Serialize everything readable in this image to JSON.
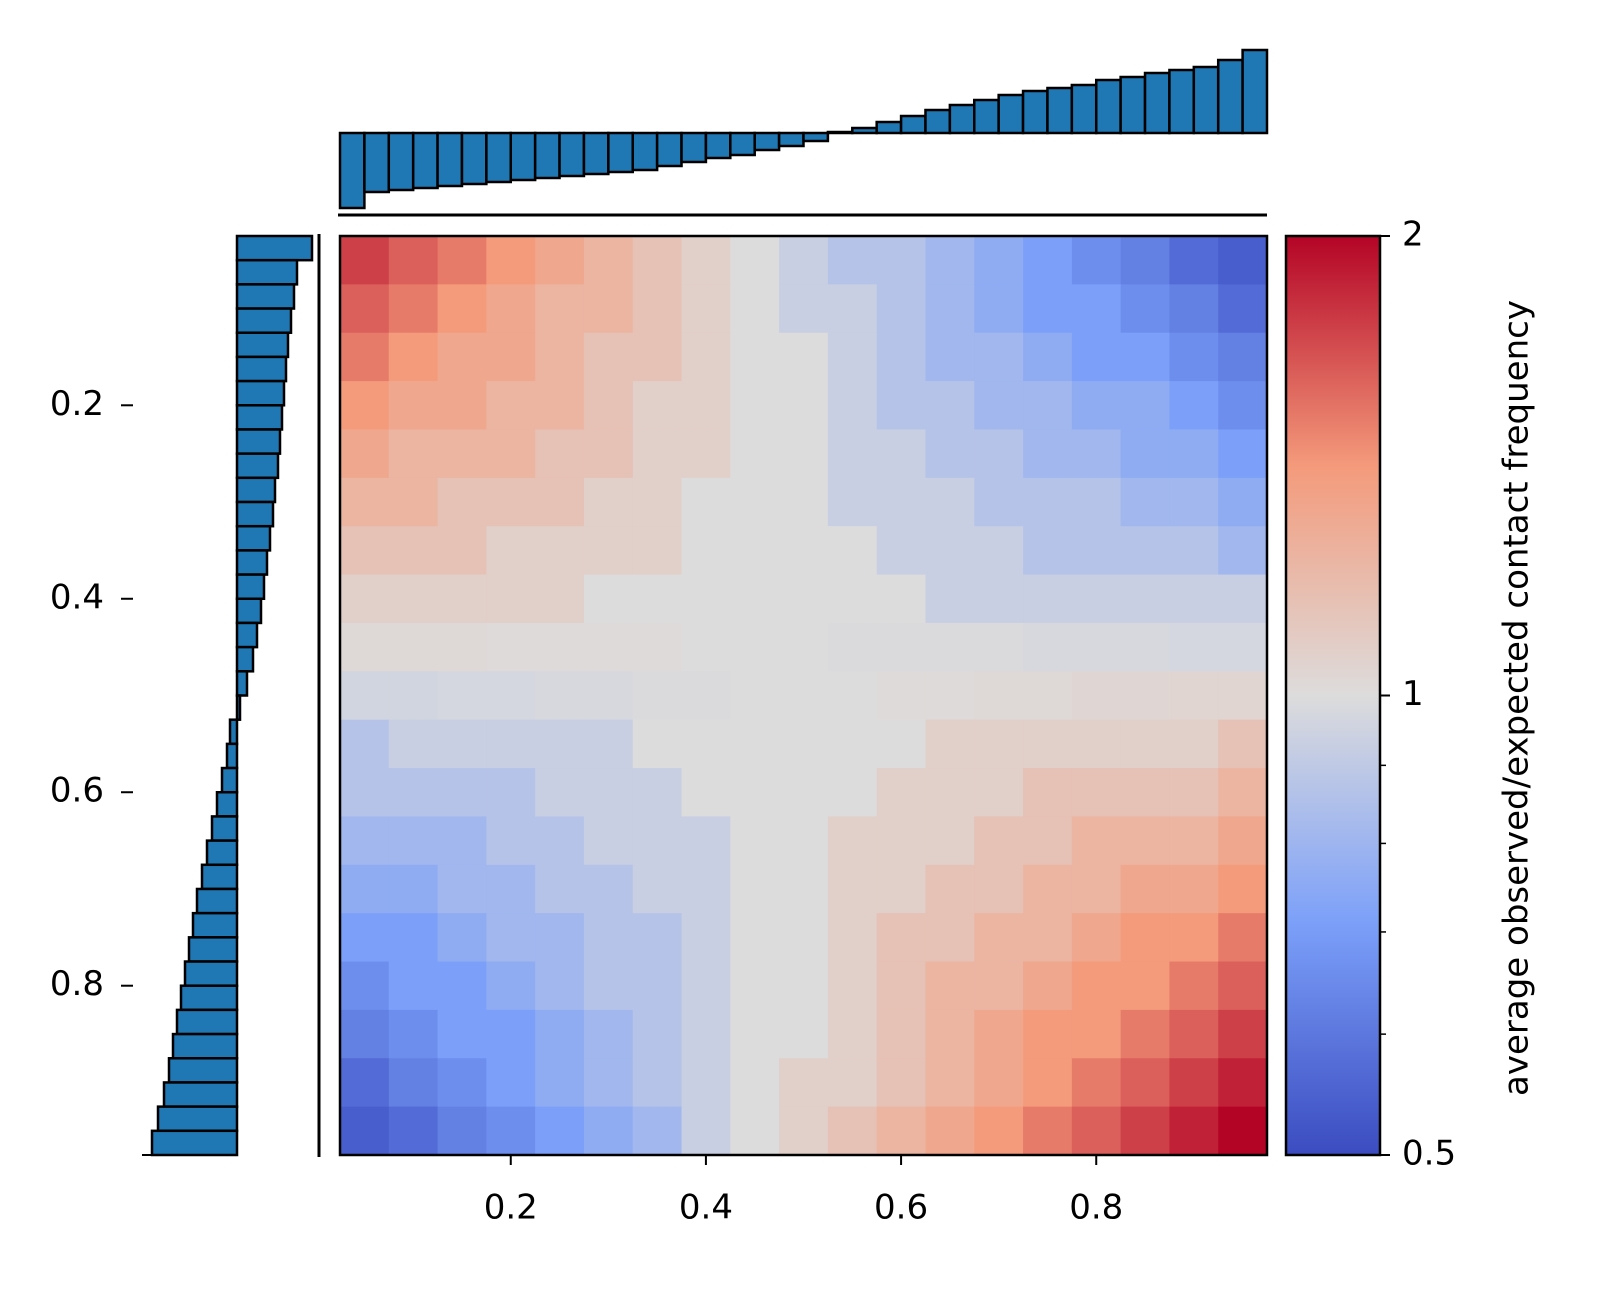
{
  "chart_data": {
    "type": "heatmap",
    "colorbar_label": "average observed/expected contact frequency",
    "xlim": [
      0.025,
      0.975
    ],
    "ylim": [
      0.025,
      0.975
    ],
    "xticks": [
      0.2,
      0.4,
      0.6,
      0.8
    ],
    "yticks": [
      0.2,
      0.4,
      0.6,
      0.8
    ],
    "clim": [
      0.5,
      2
    ],
    "color_log": true,
    "cticks": [
      0.5,
      1,
      2
    ],
    "cminor_ticks": [
      0.6,
      0.7,
      0.8,
      0.9
    ],
    "cmap_colors": [
      "#3b4cc0",
      "#7b9ff9",
      "#dddcdc",
      "#f49a7b",
      "#b40426"
    ],
    "values": [
      [
        1.74,
        1.62,
        1.52,
        1.41,
        1.32,
        1.23,
        1.15,
        1.07,
        1.0,
        0.93,
        0.87,
        0.87,
        0.81,
        0.76,
        0.71,
        0.66,
        0.62,
        0.57,
        0.54
      ],
      [
        1.62,
        1.52,
        1.41,
        1.32,
        1.23,
        1.23,
        1.15,
        1.07,
        1.0,
        0.93,
        0.93,
        0.87,
        0.81,
        0.76,
        0.71,
        0.71,
        0.66,
        0.62,
        0.57
      ],
      [
        1.52,
        1.41,
        1.32,
        1.32,
        1.23,
        1.15,
        1.15,
        1.07,
        1.0,
        1.0,
        0.93,
        0.87,
        0.81,
        0.81,
        0.76,
        0.71,
        0.71,
        0.66,
        0.62
      ],
      [
        1.41,
        1.32,
        1.32,
        1.23,
        1.23,
        1.15,
        1.07,
        1.07,
        1.0,
        1.0,
        0.93,
        0.87,
        0.87,
        0.81,
        0.81,
        0.76,
        0.76,
        0.71,
        0.66
      ],
      [
        1.32,
        1.23,
        1.23,
        1.23,
        1.15,
        1.15,
        1.07,
        1.07,
        1.0,
        1.0,
        0.93,
        0.93,
        0.87,
        0.87,
        0.81,
        0.81,
        0.76,
        0.76,
        0.71
      ],
      [
        1.23,
        1.23,
        1.15,
        1.15,
        1.15,
        1.07,
        1.07,
        1.0,
        1.0,
        1.0,
        0.93,
        0.93,
        0.93,
        0.87,
        0.87,
        0.87,
        0.81,
        0.81,
        0.76
      ],
      [
        1.15,
        1.15,
        1.15,
        1.07,
        1.07,
        1.07,
        1.07,
        1.0,
        1.0,
        1.0,
        1.0,
        0.93,
        0.93,
        0.93,
        0.87,
        0.87,
        0.87,
        0.87,
        0.81
      ],
      [
        1.07,
        1.07,
        1.07,
        1.07,
        1.07,
        1.0,
        1.0,
        1.0,
        1.0,
        1.0,
        1.0,
        1.0,
        0.93,
        0.93,
        0.93,
        0.93,
        0.93,
        0.93,
        0.93
      ],
      [
        1.02,
        1.02,
        1.02,
        1.01,
        1.01,
        1.01,
        1.01,
        1.0,
        1.0,
        1.0,
        0.99,
        0.99,
        0.99,
        0.99,
        0.98,
        0.98,
        0.98,
        0.97,
        0.97
      ],
      [
        0.96,
        0.96,
        0.97,
        0.97,
        0.98,
        0.98,
        0.99,
        0.99,
        1.0,
        1.0,
        1.0,
        1.01,
        1.01,
        1.02,
        1.02,
        1.03,
        1.03,
        1.04,
        1.04
      ],
      [
        0.87,
        0.93,
        0.93,
        0.93,
        0.93,
        0.93,
        1.0,
        1.0,
        1.0,
        1.0,
        1.0,
        1.0,
        1.07,
        1.07,
        1.07,
        1.07,
        1.07,
        1.07,
        1.15
      ],
      [
        0.87,
        0.87,
        0.87,
        0.87,
        0.93,
        0.93,
        0.93,
        1.0,
        1.0,
        1.0,
        1.0,
        1.07,
        1.07,
        1.07,
        1.15,
        1.15,
        1.15,
        1.15,
        1.23
      ],
      [
        0.81,
        0.81,
        0.81,
        0.87,
        0.87,
        0.93,
        0.93,
        0.93,
        1.0,
        1.0,
        1.07,
        1.07,
        1.07,
        1.15,
        1.15,
        1.23,
        1.23,
        1.23,
        1.32
      ],
      [
        0.76,
        0.76,
        0.81,
        0.81,
        0.87,
        0.87,
        0.93,
        0.93,
        1.0,
        1.0,
        1.07,
        1.07,
        1.15,
        1.15,
        1.23,
        1.23,
        1.32,
        1.32,
        1.41
      ],
      [
        0.71,
        0.71,
        0.76,
        0.81,
        0.81,
        0.87,
        0.87,
        0.93,
        1.0,
        1.0,
        1.07,
        1.15,
        1.15,
        1.23,
        1.23,
        1.32,
        1.41,
        1.41,
        1.52
      ],
      [
        0.66,
        0.71,
        0.71,
        0.76,
        0.81,
        0.87,
        0.87,
        0.93,
        1.0,
        1.0,
        1.07,
        1.15,
        1.23,
        1.23,
        1.32,
        1.41,
        1.41,
        1.52,
        1.62
      ],
      [
        0.62,
        0.66,
        0.71,
        0.71,
        0.76,
        0.81,
        0.87,
        0.93,
        1.0,
        1.0,
        1.07,
        1.15,
        1.23,
        1.32,
        1.41,
        1.41,
        1.52,
        1.62,
        1.74
      ],
      [
        0.57,
        0.62,
        0.66,
        0.71,
        0.76,
        0.81,
        0.87,
        0.93,
        1.0,
        1.07,
        1.07,
        1.15,
        1.23,
        1.32,
        1.41,
        1.52,
        1.62,
        1.74,
        1.87
      ],
      [
        0.54,
        0.57,
        0.62,
        0.66,
        0.71,
        0.76,
        0.81,
        0.93,
        1.0,
        1.07,
        1.15,
        1.23,
        1.32,
        1.41,
        1.52,
        1.62,
        1.74,
        1.87,
        2.0
      ]
    ],
    "top_marginal": {
      "color": "#1f77b4",
      "lim": [
        -0.82,
        0.93
      ],
      "values": [
        -0.75,
        -0.59,
        -0.57,
        -0.55,
        -0.53,
        -0.51,
        -0.49,
        -0.47,
        -0.45,
        -0.43,
        -0.41,
        -0.39,
        -0.37,
        -0.33,
        -0.29,
        -0.25,
        -0.22,
        -0.17,
        -0.13,
        -0.08,
        0.01,
        0.05,
        0.11,
        0.17,
        0.23,
        0.28,
        0.33,
        0.38,
        0.42,
        0.45,
        0.48,
        0.53,
        0.56,
        0.6,
        0.63,
        0.66,
        0.73,
        0.83
      ]
    },
    "left_marginal": {
      "color": "#1f77b4",
      "lim": [
        -0.82,
        0.95
      ],
      "values": [
        -0.75,
        -0.6,
        -0.57,
        -0.54,
        -0.51,
        -0.49,
        -0.47,
        -0.45,
        -0.43,
        -0.41,
        -0.38,
        -0.36,
        -0.33,
        -0.3,
        -0.27,
        -0.24,
        -0.2,
        -0.16,
        -0.1,
        -0.03,
        0.07,
        0.1,
        0.15,
        0.2,
        0.25,
        0.3,
        0.35,
        0.4,
        0.44,
        0.48,
        0.52,
        0.56,
        0.6,
        0.64,
        0.68,
        0.73,
        0.79,
        0.85
      ]
    }
  }
}
